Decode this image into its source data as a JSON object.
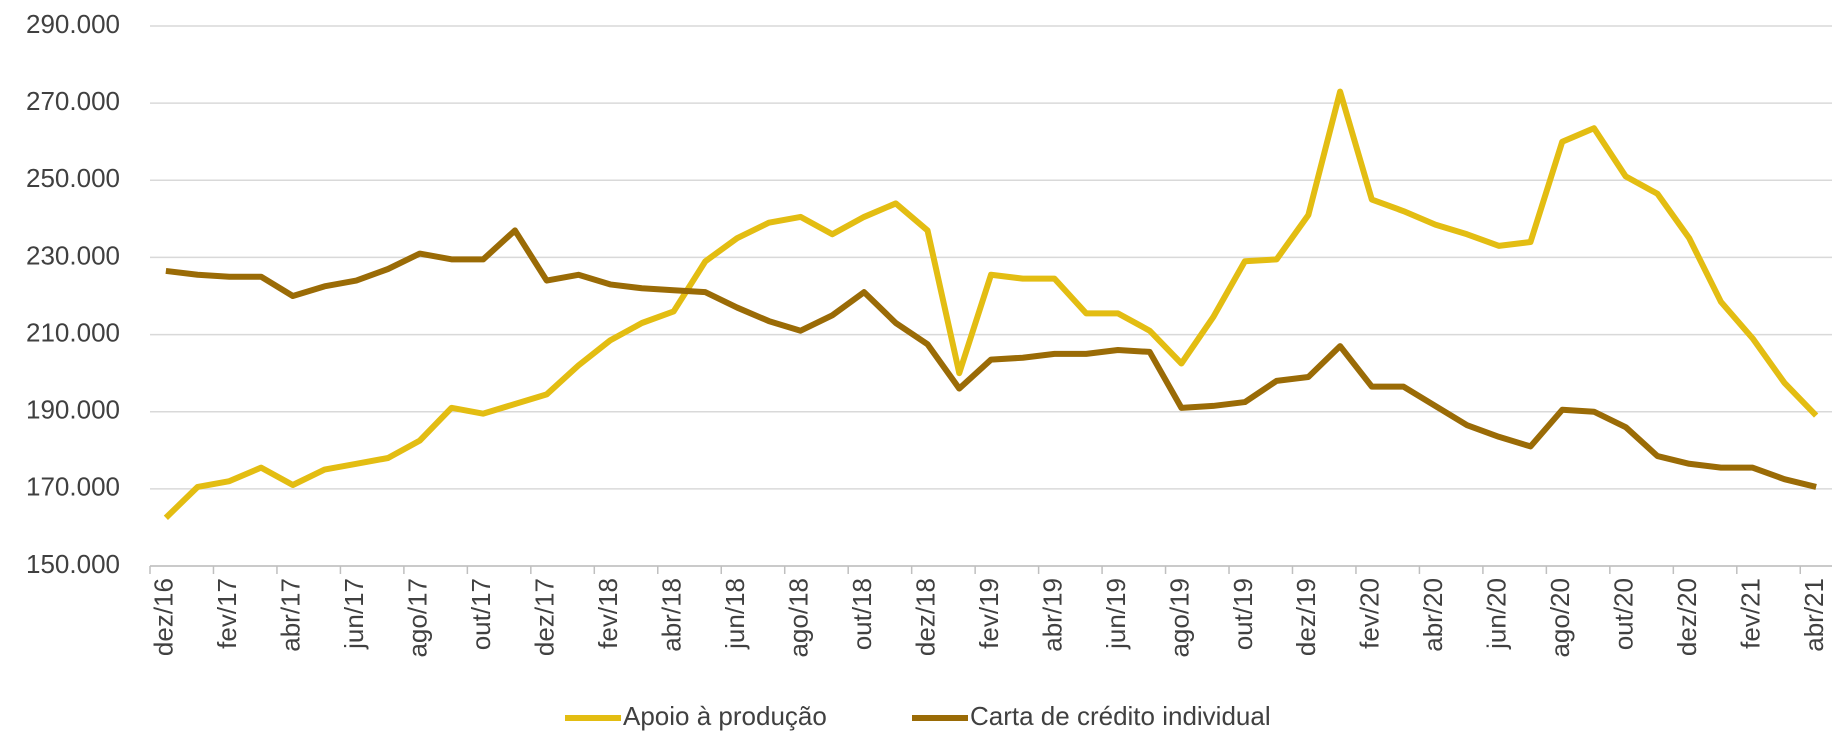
{
  "chart_data": {
    "type": "line",
    "categories": [
      "dez/16",
      null,
      "fev/17",
      null,
      "abr/17",
      null,
      "jun/17",
      null,
      "ago/17",
      null,
      "out/17",
      null,
      "dez/17",
      null,
      "fev/18",
      null,
      "abr/18",
      null,
      "jun/18",
      null,
      "ago/18",
      null,
      "out/18",
      null,
      "dez/18",
      null,
      "fev/19",
      null,
      "abr/19",
      null,
      "jun/19",
      null,
      "ago/19",
      null,
      "out/19",
      null,
      "dez/19",
      null,
      "fev/20",
      null,
      "abr/20",
      null,
      "jun/20",
      null,
      "ago/20",
      null,
      "out/20",
      null,
      "dez/20",
      null,
      "fev/21",
      null,
      "abr/21"
    ],
    "series": [
      {
        "name": "Apoio à produção",
        "color": "#e3bd12",
        "values": [
          162500,
          170500,
          172000,
          175500,
          171000,
          175000,
          176500,
          178000,
          182500,
          191000,
          189500,
          192000,
          194500,
          202000,
          208500,
          213000,
          216000,
          229000,
          235000,
          239000,
          240500,
          236000,
          240500,
          244000,
          237000,
          200000,
          225500,
          224500,
          224500,
          215500,
          215500,
          211000,
          202500,
          214500,
          229000,
          229500,
          241000,
          273000,
          245000,
          242000,
          238500,
          236000,
          233000,
          234000,
          260000,
          263500,
          251000,
          246500,
          235000,
          218500,
          209000,
          197500,
          189000
        ]
      },
      {
        "name": "Carta de crédito individual",
        "color": "#9a6b06",
        "values": [
          226500,
          225500,
          225000,
          225000,
          220000,
          222500,
          224000,
          227000,
          231000,
          229500,
          229500,
          237000,
          224000,
          225500,
          223000,
          222000,
          221500,
          221000,
          217000,
          213500,
          211000,
          215000,
          221000,
          213000,
          207500,
          196000,
          203500,
          204000,
          205000,
          205000,
          206000,
          205500,
          191000,
          191500,
          192500,
          198000,
          199000,
          207000,
          196500,
          196500,
          191500,
          186500,
          183500,
          181000,
          190500,
          190000,
          186000,
          178500,
          176500,
          175500,
          175500,
          172500,
          170500
        ]
      }
    ],
    "ylim": [
      150000,
      290000
    ],
    "yticks": [
      {
        "value": 150000,
        "label": "150.000"
      },
      {
        "value": 170000,
        "label": "170.000"
      },
      {
        "value": 190000,
        "label": "190.000"
      },
      {
        "value": 210000,
        "label": "210.000"
      },
      {
        "value": 230000,
        "label": "230.000"
      },
      {
        "value": 250000,
        "label": "250.000"
      },
      {
        "value": 270000,
        "label": "270.000"
      },
      {
        "value": 290000,
        "label": "290.000"
      }
    ],
    "grid": true,
    "legend": "bottom"
  }
}
